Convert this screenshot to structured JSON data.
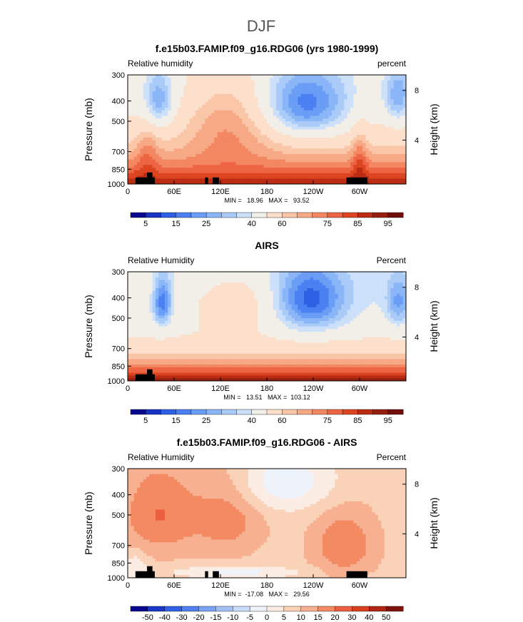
{
  "figure": {
    "title": "DJF"
  },
  "chart_data": [
    {
      "type": "heatmap",
      "title": "f.e15b03.FAMIP.f09_g16.RDG06 (yrs 1980-1999)",
      "left_label": "Relative humidity",
      "right_label": "percent",
      "ylabel": "Pressure (mb)",
      "ylabel_right": "Height (km)",
      "x_ticks": [
        "0",
        "60E",
        "120E",
        "180",
        "120W",
        "60W"
      ],
      "x_tick_values": [
        0,
        60,
        120,
        180,
        240,
        300
      ],
      "xlim": [
        0,
        360
      ],
      "y_ticks": [
        "300",
        "400",
        "500",
        "700",
        "850",
        "1000"
      ],
      "y_tick_values": [
        300,
        400,
        500,
        700,
        850,
        1000
      ],
      "ylim": [
        1000,
        300
      ],
      "y_scale": "log",
      "y_right_ticks": [
        "8",
        "4"
      ],
      "y_right_tick_values": [
        8,
        4
      ],
      "stats_text": "MIN =   18.96   MAX =   93.52",
      "min": 18.96,
      "max": 93.52,
      "colorbar": {
        "levels": [
          5,
          10,
          15,
          20,
          25,
          30,
          35,
          40,
          50,
          60,
          65,
          70,
          75,
          80,
          85,
          90,
          95
        ],
        "labels": [
          "5",
          "15",
          "25",
          "40",
          "60",
          "75",
          "85",
          "95"
        ],
        "label_levels": [
          5,
          15,
          25,
          40,
          60,
          75,
          85,
          95
        ]
      }
    },
    {
      "type": "heatmap",
      "title": "AIRS",
      "left_label": "Relative Humidity",
      "right_label": "Percent",
      "ylabel": "Pressure (mb)",
      "ylabel_right": "Height (km)",
      "x_ticks": [
        "0",
        "60E",
        "120E",
        "180",
        "120W",
        "60W"
      ],
      "x_tick_values": [
        0,
        60,
        120,
        180,
        240,
        300
      ],
      "xlim": [
        0,
        360
      ],
      "y_ticks": [
        "300",
        "400",
        "500",
        "700",
        "850",
        "1000"
      ],
      "y_tick_values": [
        300,
        400,
        500,
        700,
        850,
        1000
      ],
      "ylim": [
        1000,
        300
      ],
      "y_scale": "log",
      "y_right_ticks": [
        "8",
        "4"
      ],
      "y_right_tick_values": [
        8,
        4
      ],
      "stats_text": "MIN =   13.51   MAX =  103.12",
      "min": 13.51,
      "max": 103.12,
      "colorbar": {
        "levels": [
          5,
          10,
          15,
          20,
          25,
          30,
          35,
          40,
          50,
          60,
          65,
          70,
          75,
          80,
          85,
          90,
          95
        ],
        "labels": [
          "5",
          "15",
          "25",
          "40",
          "60",
          "75",
          "85",
          "95"
        ],
        "label_levels": [
          5,
          15,
          25,
          40,
          60,
          75,
          85,
          95
        ]
      }
    },
    {
      "type": "heatmap",
      "title": "f.e15b03.FAMIP.f09_g16.RDG06 - AIRS",
      "left_label": "Relative Humidity",
      "right_label": "Percent",
      "ylabel": "Pressure (mb)",
      "ylabel_right": "Height (km)",
      "x_ticks": [
        "0",
        "60E",
        "120E",
        "180",
        "120W",
        "60W"
      ],
      "x_tick_values": [
        0,
        60,
        120,
        180,
        240,
        300
      ],
      "xlim": [
        0,
        360
      ],
      "y_ticks": [
        "300",
        "400",
        "500",
        "700",
        "850",
        "1000"
      ],
      "y_tick_values": [
        300,
        400,
        500,
        700,
        850,
        1000
      ],
      "ylim": [
        1000,
        300
      ],
      "y_scale": "log",
      "y_right_ticks": [
        "8",
        "4"
      ],
      "y_right_tick_values": [
        8,
        4
      ],
      "stats_text": "MIN =  -17.08   MAX =   29.56",
      "min": -17.08,
      "max": 29.56,
      "colorbar": {
        "levels": [
          -50,
          -40,
          -30,
          -20,
          -15,
          -10,
          -5,
          0,
          5,
          10,
          15,
          20,
          30,
          40,
          50
        ],
        "labels": [
          "-50",
          "-40",
          "-30",
          "-20",
          "-15",
          "-10",
          "-5",
          "0",
          "5",
          "10",
          "15",
          "20",
          "30",
          "40",
          "50"
        ],
        "label_levels": [
          -50,
          -40,
          -30,
          -20,
          -15,
          -10,
          -5,
          0,
          5,
          10,
          15,
          20,
          30,
          40,
          50
        ]
      }
    }
  ],
  "palettes": {
    "absolute": [
      "#08088f",
      "#1633c4",
      "#2e60e6",
      "#4a80f2",
      "#6a9df5",
      "#8ab6f7",
      "#aacbf8",
      "#cce0fa",
      "#f2efe9",
      "#fce0cc",
      "#fac6a8",
      "#f7a885",
      "#f38762",
      "#ee6543",
      "#dd4521",
      "#bb2c12",
      "#952010",
      "#6f0e0a"
    ],
    "difference": [
      "#08088f",
      "#1838c8",
      "#3060e6",
      "#5080f0",
      "#7aa2f4",
      "#a2c0f6",
      "#c8dbf8",
      "#eef2fb",
      "#fcede4",
      "#fad2b8",
      "#f7b090",
      "#f38a62",
      "#ec6040",
      "#d8401e",
      "#b02514",
      "#7e120c"
    ],
    "terrain": "#000000"
  }
}
